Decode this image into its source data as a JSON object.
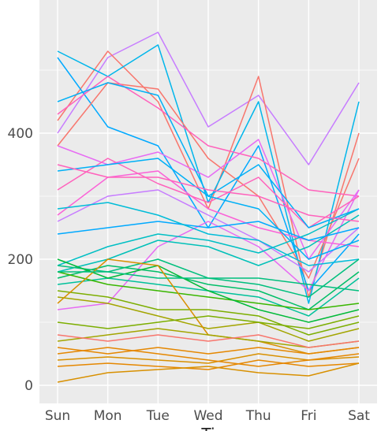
{
  "chart_data": {
    "type": "line",
    "title": "",
    "xlabel": "Ti",
    "ylabel": "",
    "categories": [
      "Sun",
      "Mon",
      "Tue",
      "Wed",
      "Thu",
      "Fri",
      "Sat"
    ],
    "ylim": [
      -5,
      580
    ],
    "yticks": [
      0,
      200,
      400
    ],
    "grid": true,
    "legend": "none",
    "panel_color": "#ebebeb",
    "series": [
      {
        "color": "#c77cff",
        "values": [
          400,
          520,
          560,
          410,
          460,
          350,
          480
        ]
      },
      {
        "color": "#f8766d",
        "values": [
          420,
          530,
          450,
          280,
          490,
          140,
          400
        ]
      },
      {
        "color": "#00b6eb",
        "values": [
          530,
          490,
          540,
          290,
          450,
          130,
          450
        ]
      },
      {
        "color": "#00a9ff",
        "values": [
          520,
          410,
          380,
          250,
          380,
          150,
          240
        ]
      },
      {
        "color": "#f8766d",
        "values": [
          380,
          480,
          470,
          360,
          300,
          170,
          360
        ]
      },
      {
        "color": "#ff62bc",
        "values": [
          430,
          490,
          440,
          380,
          360,
          310,
          300
        ]
      },
      {
        "color": "#e76bf3",
        "values": [
          380,
          350,
          370,
          330,
          390,
          200,
          310
        ]
      },
      {
        "color": "#fb61d7",
        "values": [
          270,
          330,
          340,
          280,
          250,
          230,
          220
        ]
      },
      {
        "color": "#c77cff",
        "values": [
          260,
          300,
          310,
          270,
          230,
          180,
          250
        ]
      },
      {
        "color": "#e76bf3",
        "values": [
          120,
          130,
          220,
          260,
          220,
          150,
          310
        ]
      },
      {
        "color": "#ff62bc",
        "values": [
          310,
          360,
          320,
          290,
          330,
          250,
          300
        ]
      },
      {
        "color": "#00bfc4",
        "values": [
          190,
          220,
          240,
          230,
          210,
          240,
          280
        ]
      },
      {
        "color": "#00c0b8",
        "values": [
          180,
          200,
          230,
          220,
          190,
          220,
          270
        ]
      },
      {
        "color": "#00a9ff",
        "values": [
          240,
          250,
          260,
          250,
          260,
          230,
          250
        ]
      },
      {
        "color": "#00b0f6",
        "values": [
          340,
          350,
          360,
          300,
          280,
          200,
          230
        ]
      },
      {
        "color": "#00bcd8",
        "values": [
          280,
          290,
          270,
          240,
          230,
          190,
          200
        ]
      },
      {
        "color": "#00bf7d",
        "values": [
          190,
          180,
          200,
          170,
          160,
          140,
          200
        ]
      },
      {
        "color": "#00be67",
        "values": [
          170,
          190,
          180,
          160,
          150,
          120,
          180
        ]
      },
      {
        "color": "#00c19a",
        "values": [
          160,
          170,
          160,
          150,
          140,
          110,
          170
        ]
      },
      {
        "color": "#39b600",
        "values": [
          180,
          160,
          150,
          140,
          130,
          120,
          130
        ]
      },
      {
        "color": "#00ba38",
        "values": [
          200,
          170,
          190,
          150,
          120,
          100,
          120
        ]
      },
      {
        "color": "#7cae00",
        "values": [
          150,
          140,
          120,
          120,
          110,
          80,
          100
        ]
      },
      {
        "color": "#a3a500",
        "values": [
          140,
          130,
          110,
          90,
          100,
          70,
          90
        ]
      },
      {
        "color": "#d89000",
        "values": [
          130,
          200,
          190,
          80,
          70,
          50,
          60
        ]
      },
      {
        "color": "#a3a500",
        "values": [
          70,
          80,
          90,
          80,
          70,
          60,
          70
        ]
      },
      {
        "color": "#e58700",
        "values": [
          60,
          50,
          60,
          50,
          60,
          50,
          60
        ]
      },
      {
        "color": "#d89000",
        "values": [
          40,
          45,
          40,
          35,
          50,
          40,
          45
        ]
      },
      {
        "color": "#e58700",
        "values": [
          30,
          35,
          30,
          25,
          40,
          30,
          35
        ]
      },
      {
        "color": "#f8766d",
        "values": [
          80,
          70,
          80,
          70,
          80,
          60,
          70
        ]
      },
      {
        "color": "#00b0f6",
        "values": [
          450,
          480,
          460,
          300,
          350,
          250,
          280
        ]
      },
      {
        "color": "#ff62bc",
        "values": [
          350,
          330,
          330,
          310,
          300,
          270,
          260
        ]
      },
      {
        "color": "#00bf7d",
        "values": [
          180,
          180,
          170,
          170,
          170,
          160,
          150
        ]
      },
      {
        "color": "#7cae00",
        "values": [
          100,
          90,
          100,
          110,
          100,
          90,
          110
        ]
      },
      {
        "color": "#d89000",
        "values": [
          5,
          20,
          25,
          30,
          20,
          15,
          35
        ]
      },
      {
        "color": "#e58700",
        "values": [
          50,
          60,
          50,
          40,
          30,
          40,
          50
        ]
      }
    ]
  }
}
